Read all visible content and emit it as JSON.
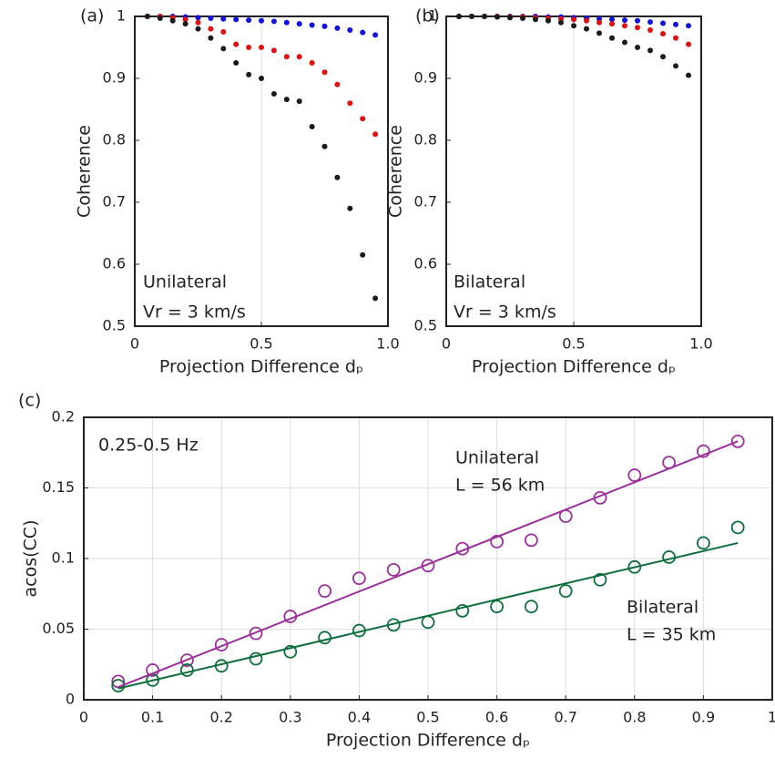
{
  "chart_data": [
    {
      "type": "scatter",
      "panel_label": "(a)",
      "xlabel": "Projection Difference dₚ",
      "ylabel": "Coherence",
      "xlim": [
        0,
        1
      ],
      "xticks": [
        0,
        0.5,
        {
          "value": 1,
          "label": "1.0"
        }
      ],
      "ylim": [
        0.5,
        1
      ],
      "yticks": [
        0.5,
        0.6,
        0.7,
        0.8,
        0.9,
        1
      ],
      "grid": "x",
      "annotations": [
        "Unilateral",
        "Vr = 3 km/s"
      ],
      "x": [
        0.05,
        0.1,
        0.15,
        0.2,
        0.25,
        0.3,
        0.35,
        0.4,
        0.45,
        0.5,
        0.55,
        0.6,
        0.65,
        0.7,
        0.75,
        0.8,
        0.85,
        0.9,
        0.95
      ],
      "series": [
        {
          "color": "#1010e0",
          "marker": "filled",
          "values": [
            1,
            1,
            1,
            0.999,
            0.998,
            0.997,
            0.996,
            0.995,
            0.994,
            0.993,
            0.992,
            0.99,
            0.988,
            0.986,
            0.984,
            0.981,
            0.978,
            0.974,
            0.97
          ]
        },
        {
          "color": "#e01010",
          "marker": "filled",
          "values": [
            1,
            1,
            0.998,
            0.995,
            0.99,
            0.98,
            0.975,
            0.955,
            0.95,
            0.95,
            0.945,
            0.935,
            0.935,
            0.925,
            0.91,
            0.89,
            0.86,
            0.835,
            0.81
          ]
        },
        {
          "color": "#1a1a1a",
          "marker": "filled",
          "values": [
            1,
            0.997,
            0.993,
            0.988,
            0.98,
            0.965,
            0.948,
            0.925,
            0.906,
            0.9,
            0.875,
            0.866,
            0.863,
            0.822,
            0.79,
            0.74,
            0.69,
            0.615,
            0.545
          ]
        }
      ]
    },
    {
      "type": "scatter",
      "panel_label": "(b)",
      "xlabel": "Projection Difference dₚ",
      "ylabel": "Coherence",
      "xlim": [
        0,
        1
      ],
      "xticks": [
        0,
        0.5,
        {
          "value": 1,
          "label": "1.0"
        }
      ],
      "ylim": [
        0.5,
        1
      ],
      "yticks": [
        0.5,
        0.6,
        0.7,
        0.8,
        0.9,
        1
      ],
      "grid": "x",
      "annotations": [
        "Bilateral",
        "Vr = 3 km/s"
      ],
      "x": [
        0.05,
        0.1,
        0.15,
        0.2,
        0.25,
        0.3,
        0.35,
        0.4,
        0.45,
        0.5,
        0.55,
        0.6,
        0.65,
        0.7,
        0.75,
        0.8,
        0.85,
        0.9,
        0.95
      ],
      "series": [
        {
          "color": "#1010e0",
          "marker": "filled",
          "values": [
            1,
            1,
            1,
            1,
            1,
            1,
            1,
            0.999,
            0.999,
            0.998,
            0.997,
            0.996,
            0.995,
            0.994,
            0.993,
            0.991,
            0.989,
            0.987,
            0.985
          ]
        },
        {
          "color": "#e01010",
          "marker": "filled",
          "values": [
            1,
            1,
            1,
            1,
            0.999,
            0.999,
            0.998,
            0.997,
            0.996,
            0.995,
            0.993,
            0.99,
            0.988,
            0.985,
            0.982,
            0.978,
            0.972,
            0.965,
            0.955
          ]
        },
        {
          "color": "#1a1a1a",
          "marker": "filled",
          "values": [
            1,
            1,
            1,
            0.999,
            0.998,
            0.997,
            0.995,
            0.993,
            0.99,
            0.985,
            0.98,
            0.973,
            0.965,
            0.958,
            0.95,
            0.945,
            0.935,
            0.92,
            0.905
          ]
        }
      ]
    },
    {
      "type": "scatter",
      "panel_label": "(c)",
      "xlabel": "Projection Difference dₚ",
      "ylabel": "acos(CC)",
      "xlim": [
        0,
        1
      ],
      "xticks": [
        0,
        0.1,
        0.2,
        0.3,
        0.4,
        0.5,
        0.6,
        0.7,
        0.8,
        0.9,
        1
      ],
      "ylim": [
        0,
        0.2
      ],
      "yticks": [
        0,
        0.05,
        0.1,
        0.15,
        0.2
      ],
      "grid": "both",
      "annotations": [
        "0.25-0.5 Hz",
        "Unilateral",
        "L = 56 km",
        "Bilateral",
        "L = 35 km"
      ],
      "x": [
        0.05,
        0.1,
        0.15,
        0.2,
        0.25,
        0.3,
        0.35,
        0.4,
        0.45,
        0.5,
        0.55,
        0.6,
        0.65,
        0.7,
        0.75,
        0.8,
        0.85,
        0.9,
        0.95
      ],
      "series": [
        {
          "color": "#9b2f9b",
          "marker": "open",
          "values": [
            0.013,
            0.021,
            0.028,
            0.039,
            0.047,
            0.059,
            0.077,
            0.086,
            0.092,
            0.095,
            0.107,
            0.112,
            0.113,
            0.13,
            0.143,
            0.159,
            0.168,
            0.176,
            0.183
          ]
        },
        {
          "color": "#0d6e3c",
          "marker": "open",
          "values": [
            0.01,
            0.014,
            0.021,
            0.024,
            0.029,
            0.034,
            0.044,
            0.049,
            0.053,
            0.055,
            0.063,
            0.066,
            0.066,
            0.077,
            0.085,
            0.094,
            0.101,
            0.111,
            0.122
          ]
        },
        {
          "color": "#9b2f9b",
          "marker": "line",
          "x": [
            0.05,
            0.95
          ],
          "values": [
            0.009,
            0.183
          ]
        },
        {
          "color": "#0d6e3c",
          "marker": "line",
          "x": [
            0.05,
            0.95
          ],
          "values": [
            0.008,
            0.111
          ]
        }
      ]
    }
  ]
}
